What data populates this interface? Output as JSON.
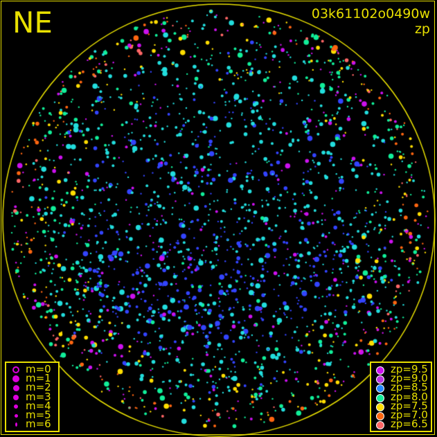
{
  "header": {
    "direction": "NE",
    "image_id": "03k61102o0490w",
    "mode": "zp"
  },
  "magnitude_legend": {
    "items": [
      {
        "label": "m=0",
        "hollow": true
      },
      {
        "label": "m=1"
      },
      {
        "label": "m=2"
      },
      {
        "label": "m=3"
      },
      {
        "label": "m=4"
      },
      {
        "label": "m=5"
      },
      {
        "label": "m=6"
      }
    ],
    "color": "#dd00dd"
  },
  "zp_legend": {
    "items": [
      {
        "label": "zp=9.5",
        "color": "#cc11ee"
      },
      {
        "label": "zp=9.0",
        "color": "#bb33dd"
      },
      {
        "label": "zp=8.5",
        "color": "#2288ff"
      },
      {
        "label": "zp=8.0",
        "color": "#11ee99"
      },
      {
        "label": "zp=7.5",
        "color": "#ffdd00"
      },
      {
        "label": "zp=7.0",
        "color": "#ff6611"
      },
      {
        "label": "zp=6.5",
        "color": "#ff6666"
      }
    ]
  },
  "colors": {
    "frame": "#e8e000",
    "background": "#000000",
    "cyan": "#22dddd",
    "blue": "#3344ff"
  }
}
